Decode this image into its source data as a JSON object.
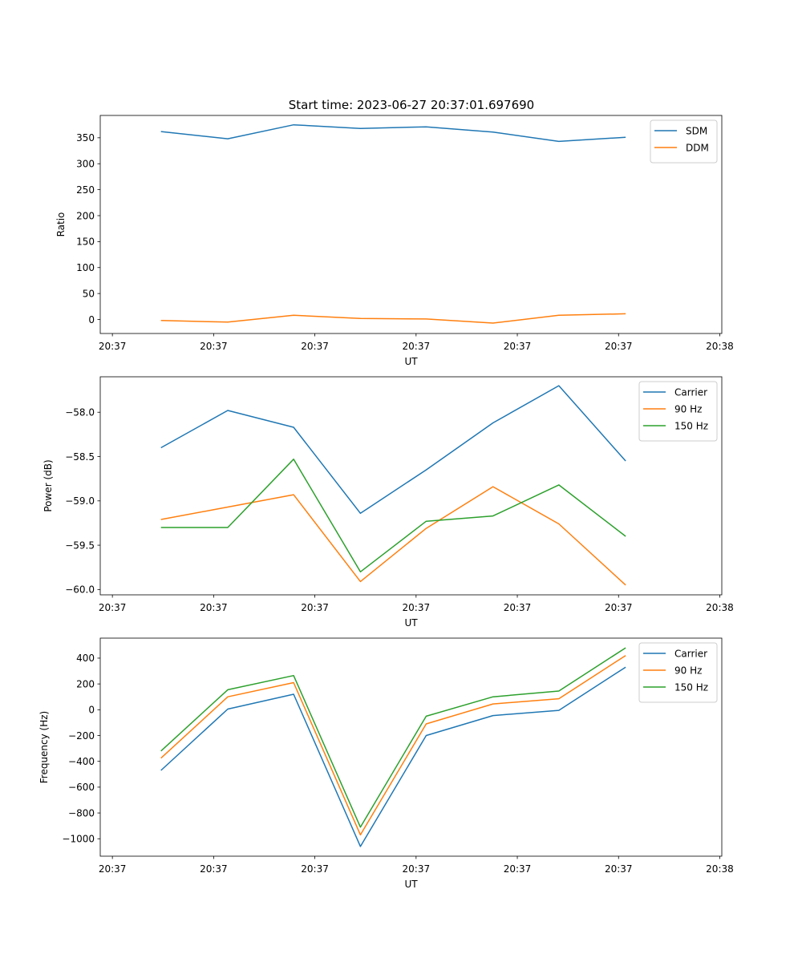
{
  "figure": {
    "title": "Start time: 2023-06-27 20:37:01.697690"
  },
  "colors": {
    "blue": "#1f77b4",
    "orange": "#ff7f0e",
    "green": "#2ca02c"
  },
  "chart_data": [
    {
      "type": "line",
      "title": "Start time: 2023-06-27 20:37:01.697690",
      "xlabel": "UT",
      "ylabel": "Ratio",
      "x_tick_labels": [
        "20:37",
        "20:37",
        "20:37",
        "20:37",
        "20:37",
        "20:37",
        "20:37"
      ],
      "x_last_tick_label": "20:38",
      "x_unit": "seconds after 20:37:00",
      "x_ticks": [
        0,
        10,
        20,
        30,
        40,
        50,
        60
      ],
      "xlim": [
        -1.2,
        60.2
      ],
      "x": [
        4.8,
        11.4,
        17.9,
        24.5,
        31.0,
        37.6,
        44.1,
        50.7
      ],
      "ylim": [
        -27,
        393
      ],
      "y_ticks": [
        0,
        50,
        100,
        150,
        200,
        250,
        300,
        350
      ],
      "legend": "top-right",
      "grid": false,
      "series": [
        {
          "name": "SDM",
          "color": "#1f77b4",
          "values": [
            362,
            348,
            375,
            368,
            371,
            361,
            343,
            351
          ]
        },
        {
          "name": "DDM",
          "color": "#ff7f0e",
          "values": [
            -2,
            -5,
            8,
            2,
            1,
            -7,
            8,
            11
          ]
        }
      ]
    },
    {
      "type": "line",
      "title": "",
      "xlabel": "UT",
      "ylabel": "Power (dB)",
      "x_tick_labels": [
        "20:37",
        "20:37",
        "20:37",
        "20:37",
        "20:37",
        "20:37",
        "20:37"
      ],
      "x_last_tick_label": "20:38",
      "x_unit": "seconds after 20:37:00",
      "x_ticks": [
        0,
        10,
        20,
        30,
        40,
        50,
        60
      ],
      "xlim": [
        -1.2,
        60.2
      ],
      "x": [
        4.8,
        11.4,
        17.9,
        24.5,
        31.0,
        37.6,
        44.1,
        50.7
      ],
      "ylim": [
        -60.06,
        -57.6
      ],
      "y_ticks": [
        -60.0,
        -59.5,
        -59.0,
        -58.5,
        -58.0
      ],
      "y_decimals": 1,
      "legend": "top-right",
      "grid": false,
      "series": [
        {
          "name": "Carrier",
          "color": "#1f77b4",
          "values": [
            -58.4,
            -57.98,
            -58.17,
            -59.14,
            -58.65,
            -58.12,
            -57.7,
            -58.55
          ]
        },
        {
          "name": "90 Hz",
          "color": "#ff7f0e",
          "values": [
            -59.21,
            -59.07,
            -58.93,
            -59.91,
            -59.31,
            -58.84,
            -59.26,
            -59.95
          ]
        },
        {
          "name": "150 Hz",
          "color": "#2ca02c",
          "values": [
            -59.3,
            -59.3,
            -58.53,
            -59.8,
            -59.23,
            -59.17,
            -58.82,
            -59.4
          ]
        }
      ]
    },
    {
      "type": "line",
      "title": "",
      "xlabel": "UT",
      "ylabel": "Frequency (Hz)",
      "x_tick_labels": [
        "20:37",
        "20:37",
        "20:37",
        "20:37",
        "20:37",
        "20:37",
        "20:37"
      ],
      "x_last_tick_label": "20:38",
      "x_unit": "seconds after 20:37:00",
      "x_ticks": [
        0,
        10,
        20,
        30,
        40,
        50,
        60
      ],
      "xlim": [
        -1.2,
        60.2
      ],
      "x": [
        4.8,
        11.4,
        17.9,
        24.5,
        31.0,
        37.6,
        44.1,
        50.7
      ],
      "ylim": [
        -1135,
        555
      ],
      "y_ticks": [
        -1000,
        -800,
        -600,
        -400,
        -200,
        0,
        200,
        400
      ],
      "legend": "top-right",
      "grid": false,
      "series": [
        {
          "name": "Carrier",
          "color": "#1f77b4",
          "values": [
            -470,
            5,
            120,
            -1060,
            -200,
            -45,
            -5,
            330
          ]
        },
        {
          "name": "90 Hz",
          "color": "#ff7f0e",
          "values": [
            -375,
            100,
            210,
            -970,
            -110,
            45,
            85,
            420
          ]
        },
        {
          "name": "150 Hz",
          "color": "#2ca02c",
          "values": [
            -320,
            155,
            265,
            -910,
            -50,
            100,
            145,
            480
          ]
        }
      ]
    }
  ]
}
